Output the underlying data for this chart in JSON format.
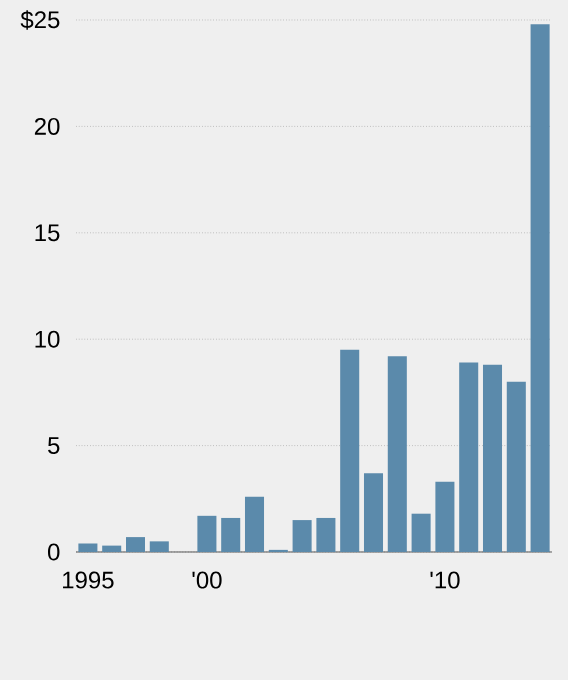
{
  "chart_data": {
    "type": "bar",
    "categories": [
      "1995",
      null,
      null,
      null,
      null,
      "'00",
      null,
      null,
      null,
      null,
      null,
      null,
      null,
      null,
      null,
      "'10",
      null,
      null,
      null,
      null
    ],
    "values": [
      0.4,
      0.3,
      0.7,
      0.5,
      0,
      1.7,
      1.6,
      2.6,
      0.1,
      1.5,
      1.6,
      9.5,
      3.7,
      9.2,
      1.8,
      3.3,
      8.9,
      8.8,
      8.0,
      24.8
    ],
    "color": "#5b8aab",
    "ylim": [
      0,
      25
    ],
    "yticks": [
      0,
      5,
      10,
      15,
      20,
      {
        "value": 25,
        "label": "$25"
      }
    ],
    "grid": "y"
  }
}
